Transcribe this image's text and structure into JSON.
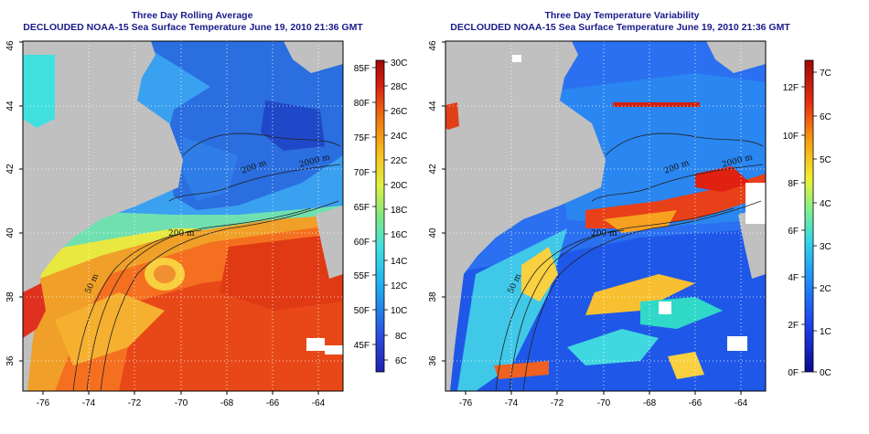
{
  "left_panel": {
    "title_line1": "Three Day Rolling Average",
    "title_line2": "DECLOUDED NOAA-15 Sea Surface Temperature June 19, 2010 21:36 GMT",
    "colorbar_c": [
      "30C",
      "28C",
      "26C",
      "24C",
      "22C",
      "20C",
      "18C",
      "16C",
      "14C",
      "12C",
      "10C",
      "8C",
      "6C"
    ],
    "colorbar_f": [
      "85F",
      "80F",
      "75F",
      "70F",
      "65F",
      "60F",
      "55F",
      "50F",
      "45F"
    ]
  },
  "right_panel": {
    "title_line1": "Three Day Temperature Variability",
    "title_line2": "DECLOUDED NOAA-15 Sea Surface Temperature June 19, 2010 21:36 GMT",
    "colorbar_c": [
      "7C",
      "6C",
      "5C",
      "4C",
      "3C",
      "2C",
      "1C",
      "0C"
    ],
    "colorbar_f": [
      "12F",
      "10F",
      "8F",
      "6F",
      "4F",
      "2F",
      "0F"
    ]
  },
  "axes": {
    "lon_ticks": [
      "-76",
      "-74",
      "-72",
      "-70",
      "-68",
      "-66",
      "-64"
    ],
    "lat_ticks": [
      "36",
      "38",
      "40",
      "42",
      "44",
      "46"
    ]
  },
  "contour_labels": [
    "50 m",
    "200 m",
    "2000 m",
    "200 m",
    "50 m",
    "200 m",
    "2000 m",
    "200 m"
  ],
  "colors": {
    "land": "#c0c0c0",
    "title_color": "#1a1a8c"
  }
}
